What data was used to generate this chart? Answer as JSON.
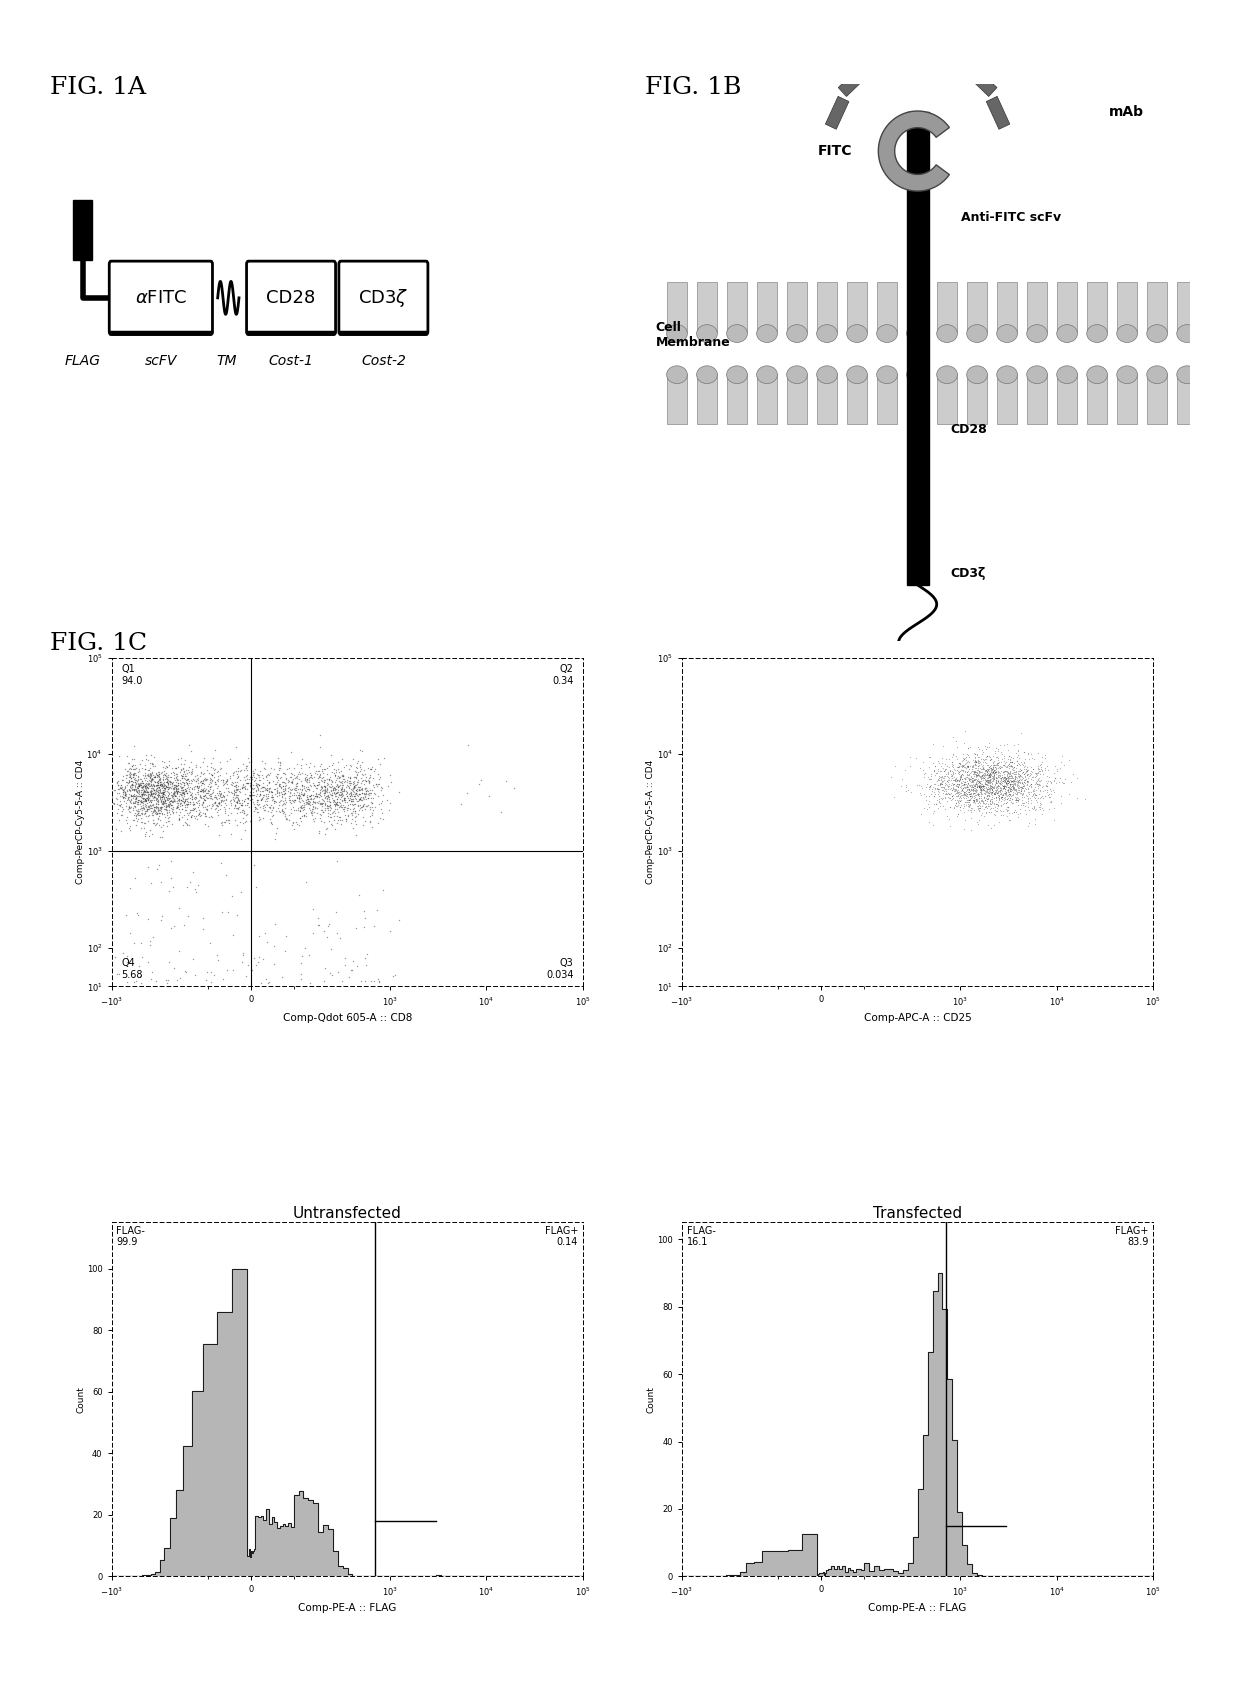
{
  "fig_labels": {
    "1A": "FIG. 1A",
    "1B": "FIG. 1B",
    "1C": "FIG. 1C"
  },
  "scatter1": {
    "xlabel": "Comp-Qdot 605-A :: CD8",
    "ylabel": "Comp-PerCP-Cy5-5-A :: CD4",
    "Q1": "Q1\n94.0",
    "Q2": "Q2\n0.34",
    "Q3": "Q3\n0.034",
    "Q4": "Q4\n5.68"
  },
  "scatter2": {
    "xlabel": "Comp-APC-A :: CD25",
    "ylabel": "Comp-PerCP-Cy5-5-A :: CD4"
  },
  "hist1": {
    "title": "Untransfected",
    "xlabel": "Comp-PE-A :: FLAG",
    "ylabel": "Count",
    "flag_neg": "FLAG-\n99.9",
    "flag_pos": "FLAG+\n0.14"
  },
  "hist2": {
    "title": "Transfected",
    "xlabel": "Comp-PE-A :: FLAG",
    "ylabel": "Count",
    "flag_neg": "FLAG-\n16.1",
    "flag_pos": "FLAG+\n83.9"
  },
  "panel1B_labels": {
    "mAb": "mAb",
    "FITC": "FITC",
    "scFv": "Anti-FITC scFv",
    "membrane": "Cell\nMembrane",
    "CD28": "CD28",
    "CD3z": "CD3ζ"
  },
  "colors": {
    "bg": "#ffffff",
    "dots": "#444444",
    "hist_gray": "#aaaaaa",
    "hist_edge": "#000000",
    "black": "#000000"
  }
}
